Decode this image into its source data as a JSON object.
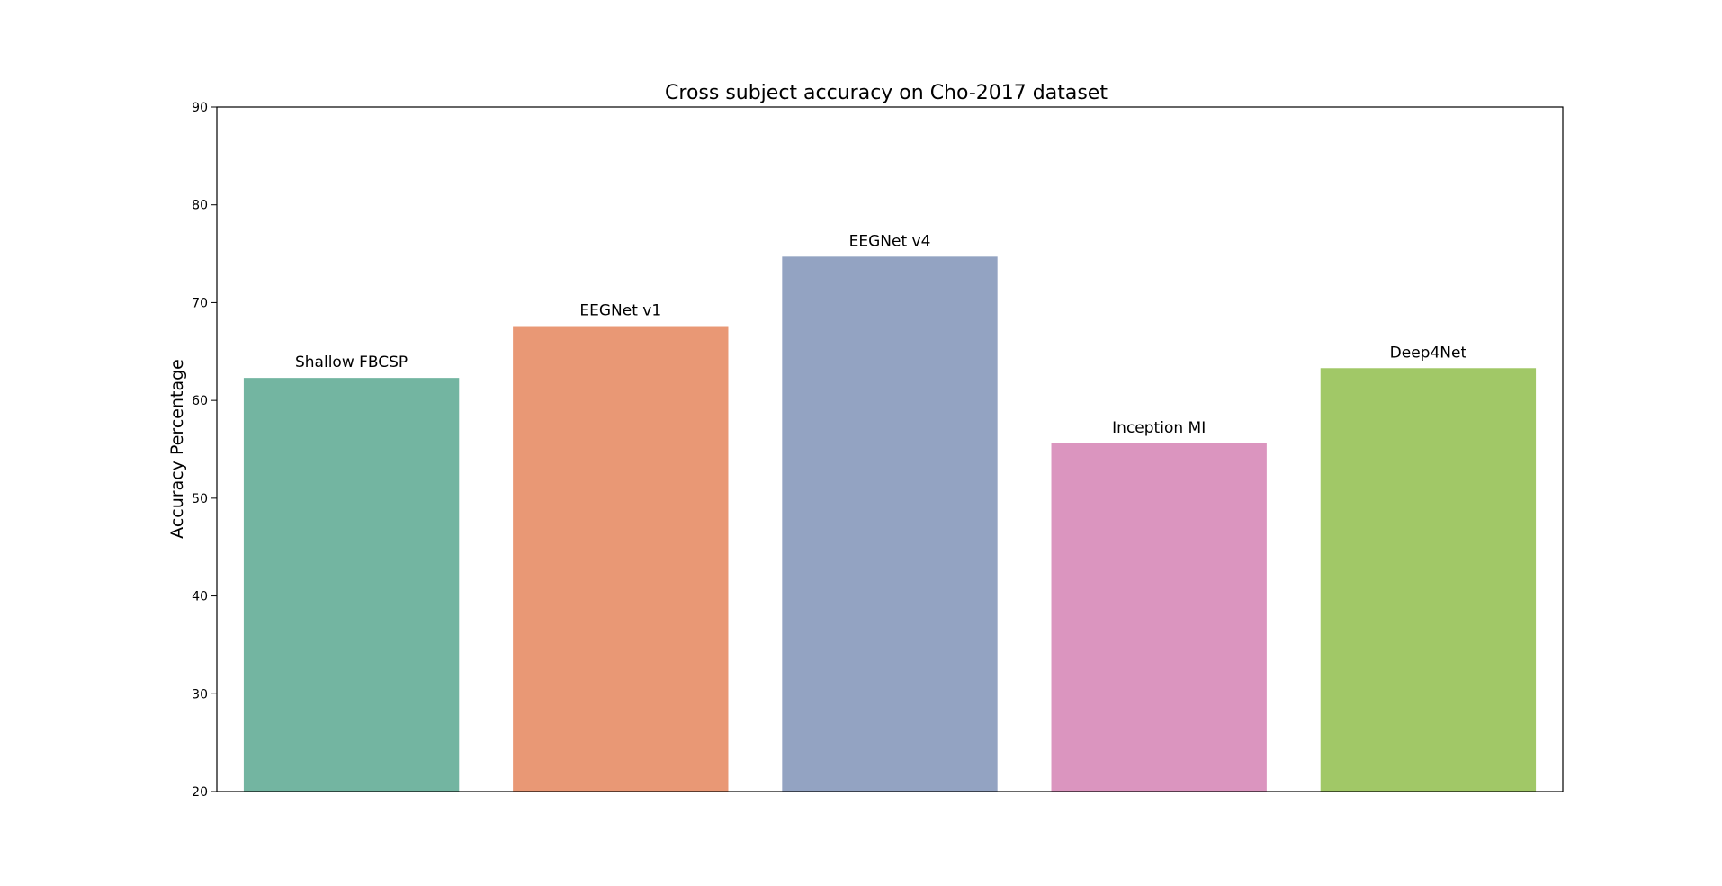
{
  "chart_data": {
    "type": "bar",
    "title": "Cross subject accuracy on Cho-2017 dataset",
    "xlabel": "",
    "ylabel": "Accuracy Percentage",
    "ylim": [
      20,
      90
    ],
    "yticks": [
      "20",
      "30",
      "40",
      "50",
      "60",
      "70",
      "80",
      "90"
    ],
    "categories": [
      "Shallow FBCSP",
      "EEGNet v1",
      "EEGNet v4",
      "Inception MI",
      "Deep4Net"
    ],
    "values": [
      62.3,
      67.6,
      74.7,
      55.6,
      63.3
    ],
    "colors": [
      "#73b5a1",
      "#e99875",
      "#93a3c2",
      "#db95bf",
      "#a1c867"
    ],
    "grid": false,
    "legend": "none"
  }
}
